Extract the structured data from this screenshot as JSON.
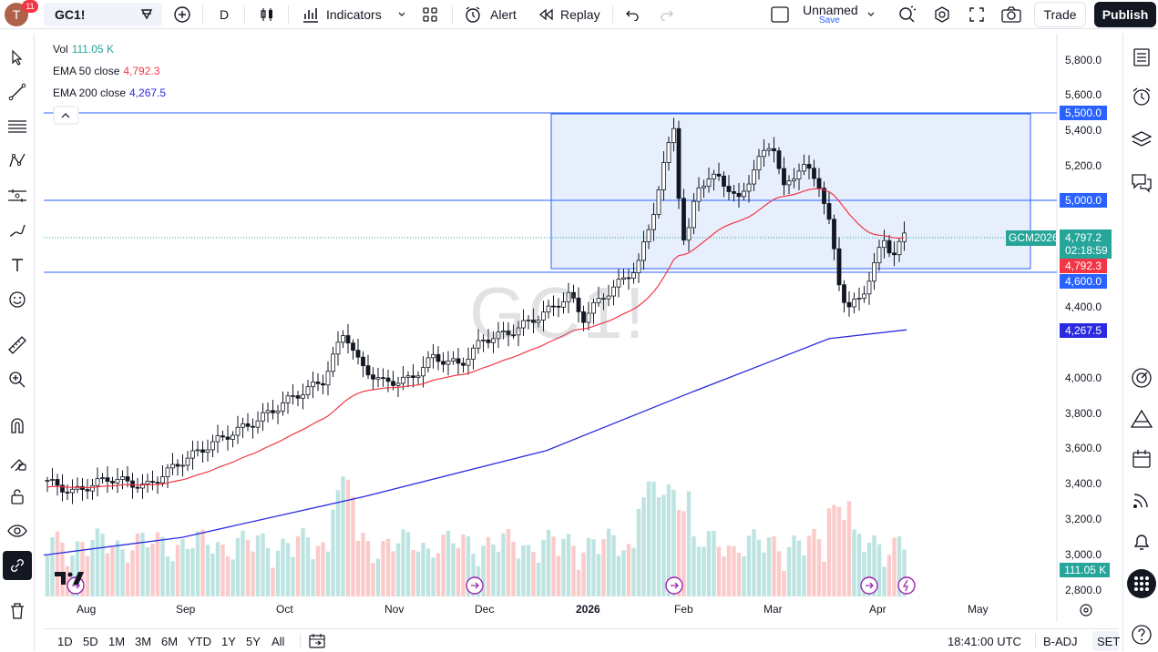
{
  "header": {
    "avatar_letter": "T",
    "notifications": "11",
    "symbol": "GC1!",
    "interval": "D",
    "indicators_label": "Indicators",
    "alert_label": "Alert",
    "replay_label": "Replay",
    "layout_name": "Unnamed",
    "layout_save": "Save",
    "trade_label": "Trade",
    "publish_label": "Publish"
  },
  "legend": {
    "vol_label": "Vol",
    "vol_value": "111.05 K",
    "ema50_label": "EMA 50 close",
    "ema50_value": "4,792.3",
    "ema200_label": "EMA 200 close",
    "ema200_value": "4,267.5"
  },
  "watermark": "GC1!",
  "price_axis": [
    "5,800.0",
    "5,600.0",
    "5,400.0",
    "5,200.0",
    "5,000.0",
    "4,800.0",
    "4,600.0",
    "4,400.0",
    "4,200.0",
    "4,000.0",
    "3,800.0",
    "3,600.0",
    "3,400.0",
    "3,200.0",
    "3,000.0",
    "2,800.0"
  ],
  "price_tags": {
    "upper_line": "5,500.0",
    "mid_line": "5,000.0",
    "last_price": "4,797.2",
    "countdown": "02:18:59",
    "contract": "GCM2026",
    "ema50": "4,792.3",
    "lower_line": "4,600.0",
    "ema200": "4,267.5",
    "volume": "111.05 K"
  },
  "time_axis": [
    "Aug",
    "Sep",
    "Oct",
    "Nov",
    "Dec",
    "2026",
    "Feb",
    "Mar",
    "Apr",
    "May"
  ],
  "bottom": {
    "ranges": [
      "1D",
      "5D",
      "1M",
      "3M",
      "6M",
      "YTD",
      "1Y",
      "5Y",
      "All"
    ],
    "clock": "18:41:00 UTC",
    "adj": "B-ADJ",
    "session": "SET"
  },
  "colors": {
    "up": "#26a69a",
    "down": "#ef5350",
    "ema50": "#f23645",
    "ema200": "#2a2ae0",
    "levels": "#2962ff",
    "box_fill": "#e3ecfd"
  },
  "chart_data": {
    "type": "candlestick",
    "ylim": [
      2750,
      5900
    ],
    "levels": [
      5500,
      5000,
      4600
    ],
    "box": {
      "top": 5500,
      "bottom": 4620
    },
    "last_price": 4797.2,
    "ema50_last": 4792.3,
    "ema200_last": 4267.5
  }
}
